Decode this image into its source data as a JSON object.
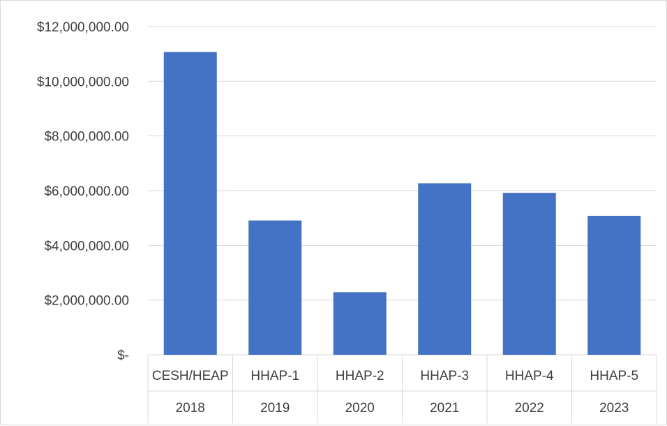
{
  "chart_data": {
    "type": "bar",
    "title": "",
    "xlabel": "",
    "ylabel": "",
    "categories": [
      [
        "CESH/HEAP",
        "2018"
      ],
      [
        "HHAP-1",
        "2019"
      ],
      [
        "HHAP-2",
        "2020"
      ],
      [
        "HHAP-3",
        "2021"
      ],
      [
        "HHAP-4",
        "2022"
      ],
      [
        "HHAP-5",
        "2023"
      ]
    ],
    "values": [
      11070000,
      4910000,
      2290000,
      6270000,
      5920000,
      5080000
    ],
    "ylim": [
      0,
      12000000
    ],
    "yticks": [
      0,
      2000000,
      4000000,
      6000000,
      8000000,
      10000000,
      12000000
    ],
    "ytick_labels": [
      "$-",
      "$2,000,000.00",
      "$4,000,000.00",
      "$6,000,000.00",
      "$8,000,000.00",
      "$10,000,000.00",
      "$12,000,000.00"
    ],
    "grid": true,
    "legend": "none",
    "bar_color": "#4472C4"
  }
}
